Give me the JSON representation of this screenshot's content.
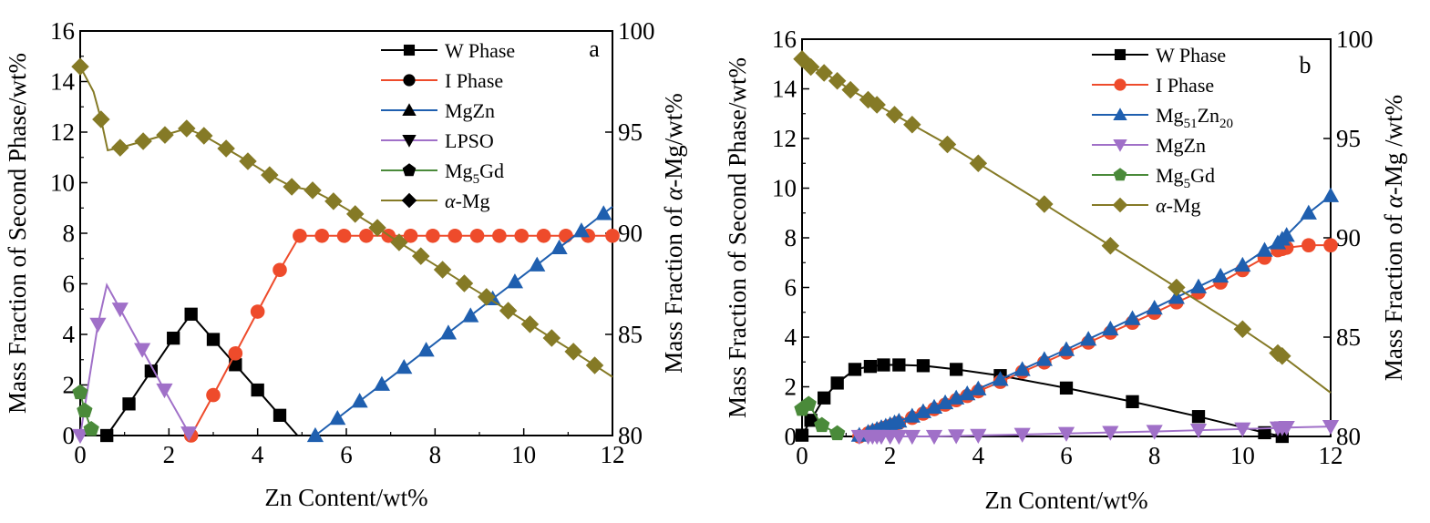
{
  "chart_data": [
    {
      "type": "line",
      "panel_label": "a",
      "xlabel": "Zn Content/wt%",
      "ylabel": "Mass Fraction of Second Phase/wt%",
      "y2label": "Mass Fraction of α-Mg/wt%",
      "xlim": [
        0,
        12
      ],
      "ylim": [
        0,
        16
      ],
      "y2lim": [
        80,
        100
      ],
      "xticks": [
        "0",
        "2",
        "4",
        "6",
        "8",
        "10",
        "12"
      ],
      "yticks": [
        "0",
        "2",
        "4",
        "6",
        "8",
        "10",
        "12",
        "14",
        "16"
      ],
      "y2ticks": [
        "80",
        "85",
        "90",
        "95",
        "100"
      ],
      "legend_position": "top-right",
      "series": [
        {
          "name": "W Phase",
          "axis": "left",
          "color": "#000000",
          "marker": "square",
          "x": [
            0.6,
            1.1,
            1.6,
            2.1,
            2.5,
            3.0,
            3.5,
            4.0,
            4.5,
            4.9
          ],
          "y": [
            0,
            1.25,
            2.55,
            3.85,
            4.8,
            3.8,
            2.8,
            1.8,
            0.8,
            0
          ],
          "marker_mask": [
            1,
            1,
            1,
            1,
            1,
            1,
            1,
            1,
            1,
            0
          ]
        },
        {
          "name": "I Phase",
          "axis": "left",
          "color": "#EE4B2B",
          "marker": "circle",
          "x": [
            2.5,
            3.0,
            3.5,
            4.0,
            4.5,
            4.95,
            5.45,
            5.95,
            6.45,
            6.95,
            7.45,
            7.95,
            8.45,
            8.95,
            9.45,
            9.95,
            10.45,
            10.95,
            11.45,
            12.0
          ],
          "y": [
            0,
            1.6,
            3.25,
            4.9,
            6.55,
            7.9,
            7.9,
            7.9,
            7.9,
            7.9,
            7.9,
            7.9,
            7.9,
            7.9,
            7.9,
            7.9,
            7.9,
            7.9,
            7.9,
            7.9
          ]
        },
        {
          "name": "MgZn",
          "axis": "left",
          "color": "#1F5FAF",
          "marker": "triangle-up",
          "x": [
            5.3,
            5.8,
            6.3,
            6.8,
            7.3,
            7.8,
            8.3,
            8.8,
            9.3,
            9.8,
            10.3,
            10.8,
            11.3,
            11.8,
            12.0
          ],
          "y": [
            0,
            0.68,
            1.36,
            2.03,
            2.7,
            3.38,
            4.06,
            4.74,
            5.41,
            6.08,
            6.75,
            7.43,
            8.1,
            8.78,
            9.05
          ],
          "marker_mask": [
            1,
            1,
            1,
            1,
            1,
            1,
            1,
            1,
            1,
            1,
            1,
            1,
            1,
            1,
            0
          ]
        },
        {
          "name": "LPSO",
          "axis": "left",
          "color": "#A070C8",
          "marker": "triangle-down",
          "x": [
            0,
            0.4,
            0.6,
            0.9,
            1.4,
            1.9,
            2.45
          ],
          "y": [
            0,
            4.4,
            5.95,
            5.0,
            3.4,
            1.8,
            0.1
          ],
          "marker_mask": [
            1,
            1,
            0,
            1,
            1,
            1,
            1
          ]
        },
        {
          "name": "Mg5Gd",
          "axis": "left",
          "color": "#4A8A3A",
          "marker": "pentagon",
          "x": [
            0,
            0.1,
            0.25
          ],
          "y": [
            1.7,
            0.98,
            0.25
          ]
        },
        {
          "name": "α-Mg",
          "axis": "right",
          "color": "#857A26",
          "marker": "diamond",
          "x": [
            0,
            0.3,
            0.47,
            0.62,
            0.9,
            1.42,
            1.91,
            2.4,
            2.79,
            3.29,
            3.78,
            4.27,
            4.77,
            5.24,
            5.71,
            6.2,
            6.7,
            7.19,
            7.68,
            8.17,
            8.66,
            9.16,
            9.65,
            10.14,
            10.63,
            11.12,
            11.6,
            12.0
          ],
          "y": [
            98.24,
            97.0,
            95.63,
            94.1,
            94.23,
            94.55,
            94.86,
            95.18,
            94.82,
            94.19,
            93.56,
            92.88,
            92.3,
            92.12,
            91.58,
            90.95,
            90.27,
            89.55,
            88.87,
            88.2,
            87.52,
            86.85,
            86.17,
            85.5,
            84.82,
            84.15,
            83.47,
            82.9
          ],
          "marker_mask": [
            1,
            0,
            1,
            0,
            1,
            1,
            1,
            1,
            1,
            1,
            1,
            1,
            1,
            1,
            1,
            1,
            1,
            1,
            1,
            1,
            1,
            1,
            1,
            1,
            1,
            1,
            1,
            0
          ]
        }
      ]
    },
    {
      "type": "line",
      "panel_label": "b",
      "xlabel": "Zn Content/wt%",
      "ylabel": "Mass Fraction of Second Phase/wt%",
      "y2label": "Mass Fraction of α-Mg /wt%",
      "xlim": [
        0,
        12
      ],
      "ylim": [
        0,
        16
      ],
      "y2lim": [
        80,
        100
      ],
      "xticks": [
        "0",
        "2",
        "4",
        "6",
        "8",
        "10",
        "12"
      ],
      "yticks": [
        "0",
        "2",
        "4",
        "6",
        "8",
        "10",
        "12",
        "14",
        "16"
      ],
      "y2ticks": [
        "80",
        "85",
        "90",
        "95",
        "100"
      ],
      "legend_position": "top-right",
      "series": [
        {
          "name": "W Phase",
          "axis": "left",
          "color": "#000000",
          "marker": "square",
          "x": [
            0,
            0.2,
            0.5,
            0.8,
            1.2,
            1.55,
            1.85,
            2.2,
            2.75,
            3.5,
            4.5,
            6.0,
            7.5,
            9.0,
            10.5,
            10.9
          ],
          "y": [
            0.05,
            0.65,
            1.55,
            2.15,
            2.7,
            2.82,
            2.88,
            2.88,
            2.85,
            2.7,
            2.45,
            1.95,
            1.4,
            0.8,
            0.15,
            0
          ]
        },
        {
          "name": "I Phase",
          "axis": "left",
          "color": "#EE4B2B",
          "marker": "circle",
          "x": [
            1.3,
            1.5,
            1.6,
            1.7,
            1.8,
            1.9,
            2.0,
            2.1,
            2.2,
            2.5,
            2.75,
            3.0,
            3.25,
            3.5,
            3.75,
            4.0,
            4.5,
            5.0,
            5.5,
            6.0,
            6.5,
            7.0,
            7.5,
            8.0,
            8.5,
            9.0,
            9.5,
            10.0,
            10.5,
            10.8,
            10.9,
            11.0,
            11.5,
            12.0
          ],
          "y": [
            0.0,
            0.12,
            0.18,
            0.24,
            0.3,
            0.36,
            0.42,
            0.48,
            0.55,
            0.75,
            0.92,
            1.1,
            1.28,
            1.46,
            1.63,
            1.82,
            2.2,
            2.6,
            2.98,
            3.38,
            3.78,
            4.18,
            4.58,
            4.98,
            5.4,
            5.8,
            6.2,
            6.7,
            7.2,
            7.5,
            7.55,
            7.6,
            7.7,
            7.7
          ]
        },
        {
          "name": "Mg51Zn20",
          "axis": "left",
          "color": "#1F5FAF",
          "marker": "triangle-up",
          "x": [
            1.3,
            1.5,
            1.6,
            1.7,
            1.8,
            1.9,
            2.0,
            2.1,
            2.2,
            2.5,
            2.75,
            3.0,
            3.25,
            3.5,
            3.75,
            4.0,
            4.5,
            5.0,
            5.5,
            6.0,
            6.5,
            7.0,
            7.5,
            8.0,
            8.5,
            9.0,
            9.5,
            10.0,
            10.5,
            10.8,
            10.9,
            11.0,
            11.5,
            12.0
          ],
          "y": [
            0.05,
            0.17,
            0.23,
            0.29,
            0.36,
            0.42,
            0.48,
            0.55,
            0.62,
            0.82,
            1.0,
            1.18,
            1.36,
            1.55,
            1.72,
            1.92,
            2.3,
            2.7,
            3.1,
            3.5,
            3.92,
            4.33,
            4.75,
            5.17,
            5.6,
            6.03,
            6.46,
            6.9,
            7.5,
            7.8,
            7.95,
            8.1,
            9.0,
            9.7
          ]
        },
        {
          "name": "MgZn",
          "axis": "left",
          "color": "#A070C8",
          "marker": "triangle-down",
          "x": [
            1.3,
            1.5,
            1.6,
            1.7,
            1.8,
            2.0,
            2.2,
            2.5,
            3.0,
            3.5,
            4.0,
            5.0,
            6.0,
            7.0,
            8.0,
            9.0,
            10.0,
            10.8,
            10.9,
            11.0,
            12.0
          ],
          "y": [
            0.0,
            0.0,
            0.0,
            0.0,
            0.0,
            0.0,
            0.0,
            0.0,
            0.0,
            0.02,
            0.04,
            0.08,
            0.12,
            0.16,
            0.2,
            0.25,
            0.3,
            0.34,
            0.35,
            0.36,
            0.4
          ]
        },
        {
          "name": "Mg5Gd",
          "axis": "left",
          "color": "#4A8A3A",
          "marker": "pentagon",
          "x": [
            0,
            0.15,
            0.45,
            0.8
          ],
          "y": [
            1.1,
            1.3,
            0.45,
            0.12
          ]
        },
        {
          "name": "α-Mg",
          "axis": "right",
          "color": "#857A26",
          "marker": "diamond",
          "x": [
            0,
            0.2,
            0.5,
            0.8,
            1.1,
            1.5,
            1.7,
            2.1,
            2.5,
            3.3,
            4.0,
            5.5,
            7.0,
            8.5,
            10.0,
            10.8,
            10.9,
            12.0
          ],
          "y": [
            99.0,
            98.6,
            98.3,
            97.9,
            97.45,
            96.95,
            96.7,
            96.2,
            95.7,
            94.7,
            93.75,
            91.7,
            89.6,
            87.5,
            85.4,
            84.2,
            84.05,
            82.2
          ],
          "marker_mask": [
            1,
            1,
            1,
            1,
            1,
            1,
            1,
            1,
            1,
            1,
            1,
            1,
            1,
            1,
            1,
            1,
            1,
            0
          ]
        }
      ]
    }
  ],
  "legend_labels": {
    "a": [
      "W Phase",
      "I Phase",
      "MgZn",
      "LPSO",
      "Mg5Gd",
      "α-Mg"
    ],
    "b": [
      "W Phase",
      "I Phase",
      "Mg51Zn20",
      "MgZn",
      "Mg5Gd",
      "α-Mg"
    ]
  }
}
